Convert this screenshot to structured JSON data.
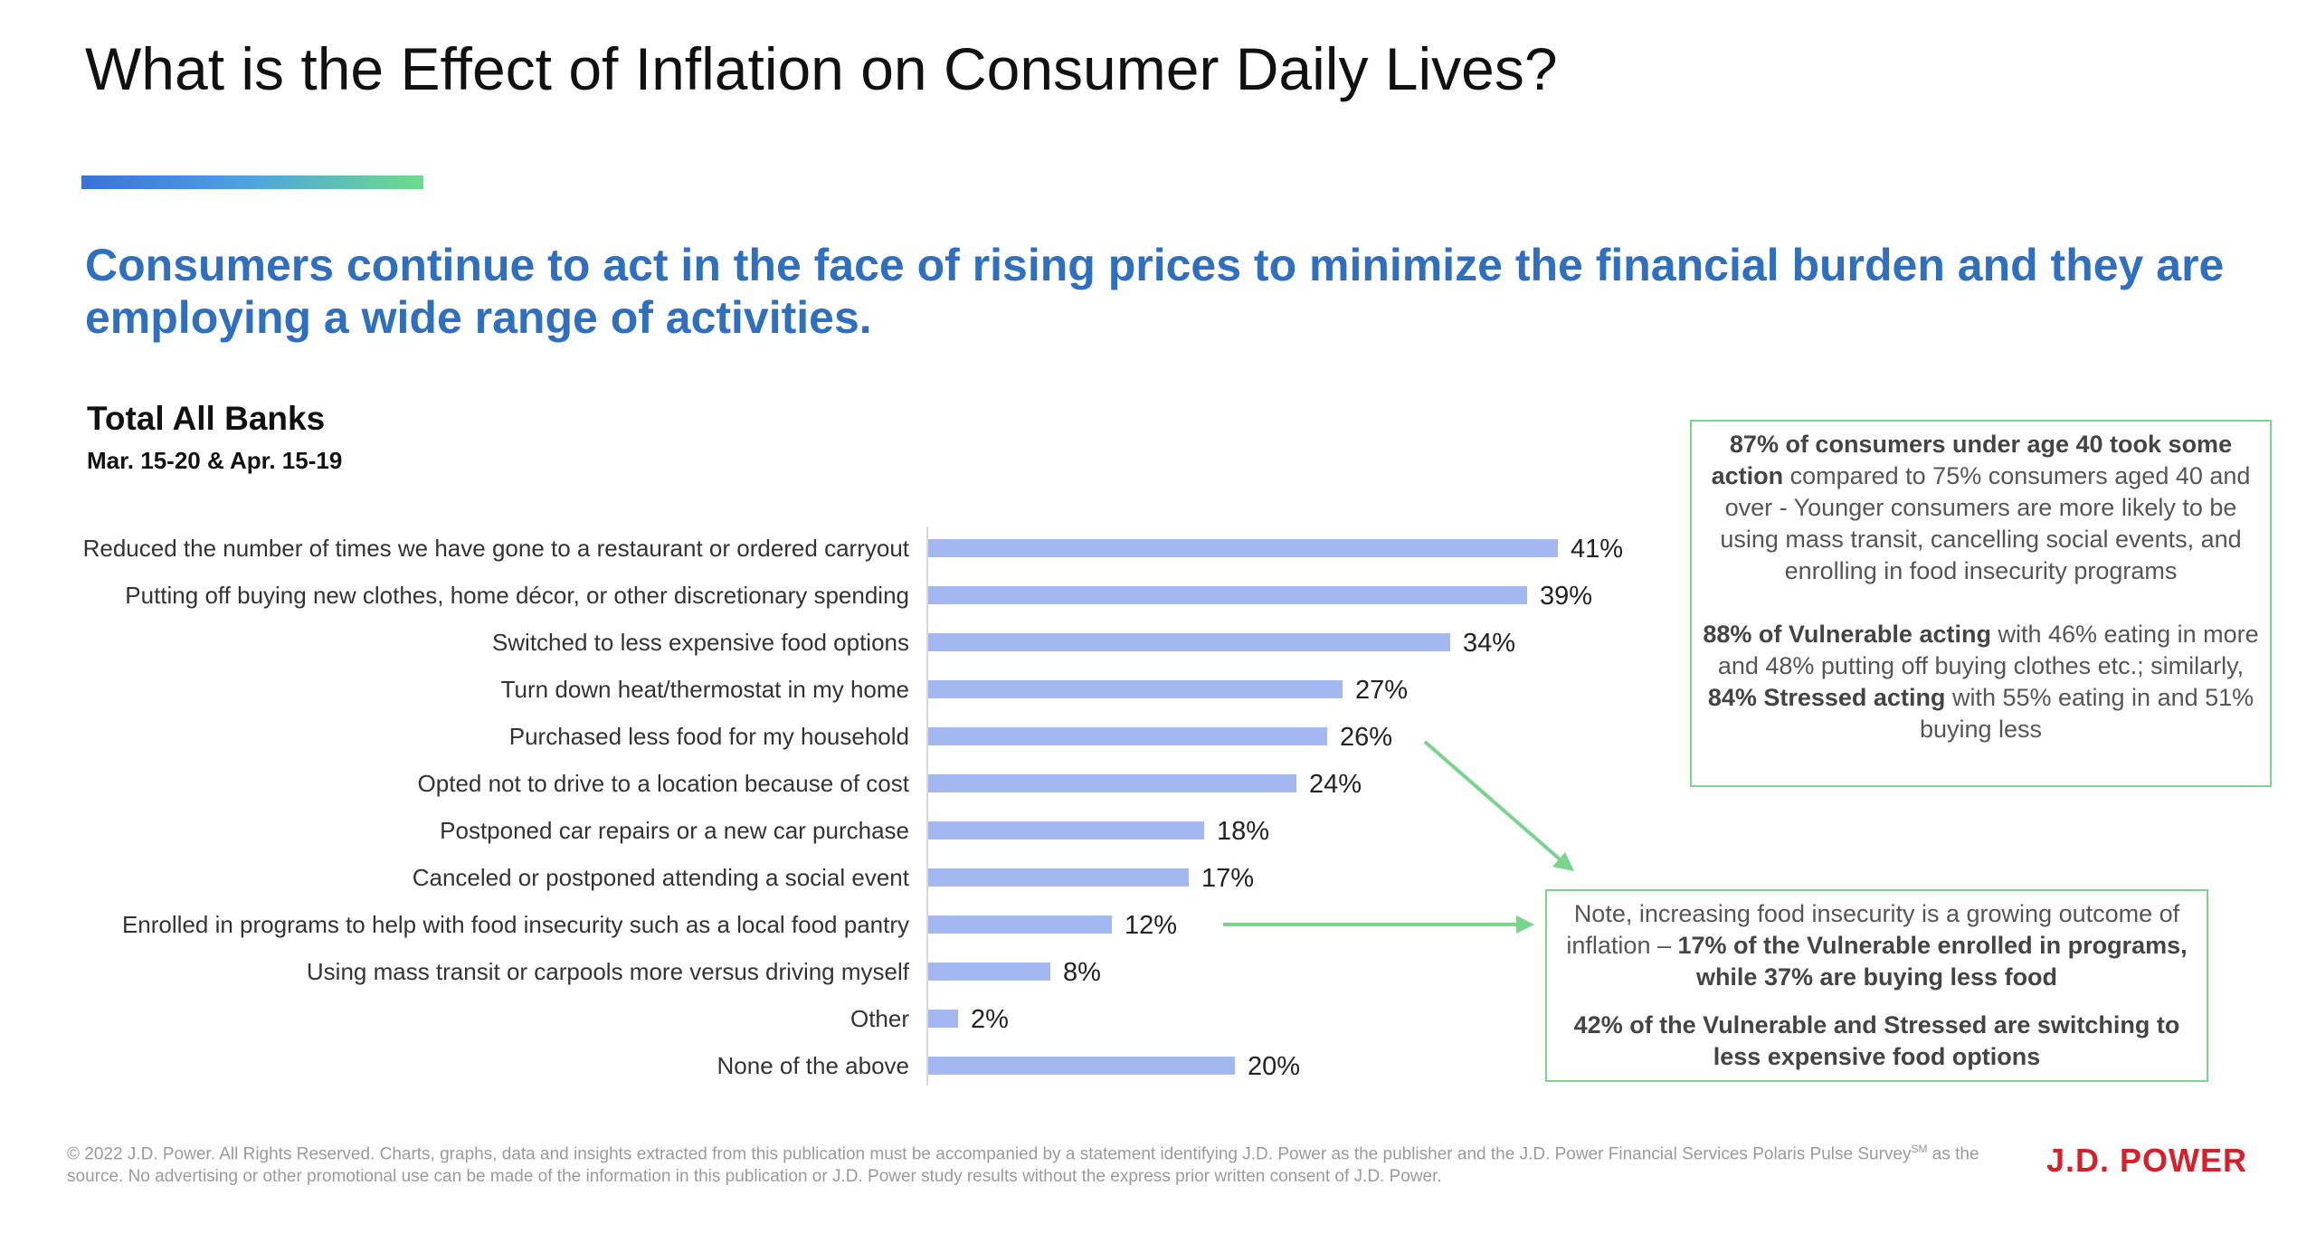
{
  "title": "What is the Effect of Inflation on Consumer Daily Lives?",
  "subtitle": "Consumers continue to act in the face of rising prices to minimize the financial burden and they are employing a wide range of activities.",
  "section": {
    "title": "Total All Banks",
    "date": "Mar. 15-20 & Apr. 15-19"
  },
  "colors": {
    "bar": "#a3b8f0",
    "accent_green": "#79d48c",
    "subtitle_blue": "#2e6fc0",
    "brand_red": "#d6202c"
  },
  "chart_data": {
    "type": "bar",
    "orientation": "horizontal",
    "categories": [
      "Reduced the number of times we have gone to a restaurant or ordered carryout",
      "Putting off buying new clothes, home décor, or other discretionary spending",
      "Switched to less expensive food options",
      "Turn down heat/thermostat in my home",
      "Purchased less food for my household",
      "Opted not to drive to a location because of cost",
      "Postponed car repairs or a new car purchase",
      "Canceled or postponed attending a social event",
      "Enrolled in programs to help with food insecurity such as a local food pantry",
      "Using mass transit or carpools more versus driving myself",
      "Other",
      "None of the above"
    ],
    "values": [
      41,
      39,
      34,
      27,
      26,
      24,
      18,
      17,
      12,
      8,
      2,
      20
    ],
    "labels": [
      "41%",
      "39%",
      "34%",
      "27%",
      "26%",
      "24%",
      "18%",
      "17%",
      "12%",
      "8%",
      "2%",
      "20%"
    ],
    "unit": "%",
    "xlim": [
      0,
      45
    ],
    "grid": false
  },
  "callouts": {
    "box1": {
      "p1_bold": "87% of consumers under age 40 took some action",
      "p1_rest": " compared to 75% consumers aged 40 and over - Younger consumers are more likely to be using mass transit, cancelling social events, and enrolling in food insecurity programs",
      "p2_bold1": "88% of Vulnerable acting",
      "p2_mid": " with 46% eating in more and 48% putting off buying clothes etc.; similarly, ",
      "p2_bold2": "84% Stressed acting",
      "p2_end": " with 55% eating in and 51% buying less"
    },
    "box2": {
      "p1_plain": "Note, increasing food insecurity is a growing outcome of inflation – ",
      "p1_bold": "17% of the Vulnerable enrolled in programs, while 37% are buying less food",
      "p2_bold": "42% of the Vulnerable and Stressed are switching to less expensive food options"
    }
  },
  "footer": "© 2022 J.D. Power. All Rights Reserved. Charts, graphs, data and insights extracted from this publication must be accompanied by a statement identifying J.D. Power as the publisher and the J.D. Power Financial Services Polaris Pulse Survey",
  "footer_sm": "SM",
  "footer_end": " as the source. No advertising or other promotional use can be made of the information in this publication or J.D. Power study results without the express prior written consent of J.D. Power.",
  "brand": "J.D. POWER"
}
